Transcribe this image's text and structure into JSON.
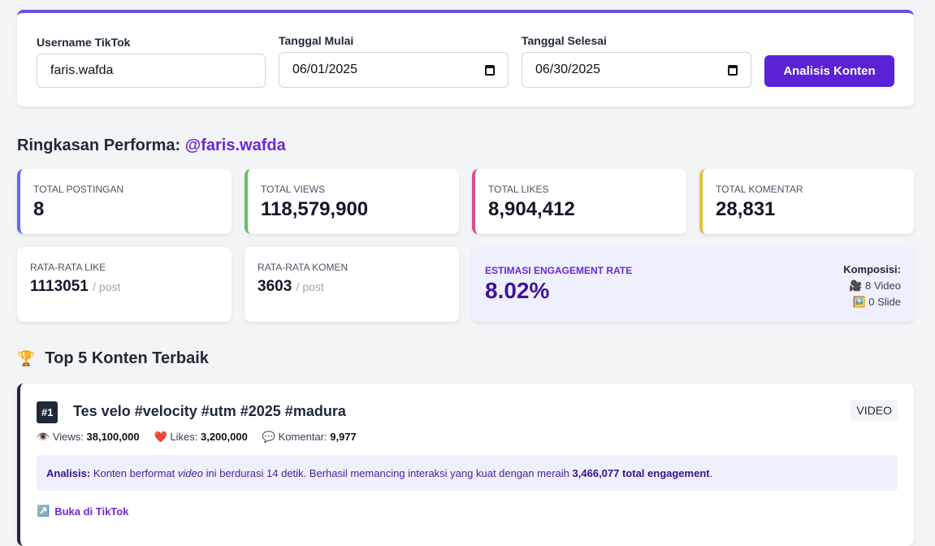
{
  "form": {
    "username_label": "Username TikTok",
    "username_value": "faris.wafda",
    "start_label": "Tanggal Mulai",
    "start_value": "06/01/2025",
    "end_label": "Tanggal Selesai",
    "end_value": "06/30/2025",
    "submit_label": "Analisis Konten"
  },
  "summary": {
    "title": "Ringkasan Performa:",
    "handle": "@faris.wafda",
    "stats": [
      {
        "label": "Total Postingan",
        "value": "8",
        "color": "#6366f1"
      },
      {
        "label": "Total Views",
        "value": "118,579,900",
        "color": "#5ec26a"
      },
      {
        "label": "Total Likes",
        "value": "8,904,412",
        "color": "#d64d93"
      },
      {
        "label": "Total Komentar",
        "value": "28,831",
        "color": "#e3c23a"
      }
    ],
    "avg_like": {
      "label": "Rata-rata Like",
      "value": "1113051",
      "suffix": "/ post"
    },
    "avg_comment": {
      "label": "Rata-rata Komen",
      "value": "3603",
      "suffix": "/ post"
    },
    "engagement": {
      "label": "Estimasi Engagement Rate",
      "value": "8.02%",
      "composition_label": "Komposisi:",
      "video": "8 Video",
      "slide": "0 Slide"
    }
  },
  "top": {
    "icon": "🏆",
    "title": "Top 5 Konten Terbaik",
    "items": [
      {
        "rank": "#1",
        "title": "Tes velo #velocity #utm #2025 #madura",
        "type": "VIDEO",
        "views_label": "Views:",
        "views": "38,100,000",
        "likes_label": "Likes:",
        "likes": "3,200,000",
        "comments_label": "Komentar:",
        "comments": "9,977",
        "analysis_label": "Analisis:",
        "analysis_pre": "Konten berformat",
        "analysis_em": "video",
        "analysis_mid": "ini berdurasi 14 detik. Berhasil memancing interaksi yang kuat dengan meraih",
        "analysis_strong": "3,466,077 total engagement",
        "analysis_end": ".",
        "link": "Buka di TikTok"
      }
    ]
  }
}
